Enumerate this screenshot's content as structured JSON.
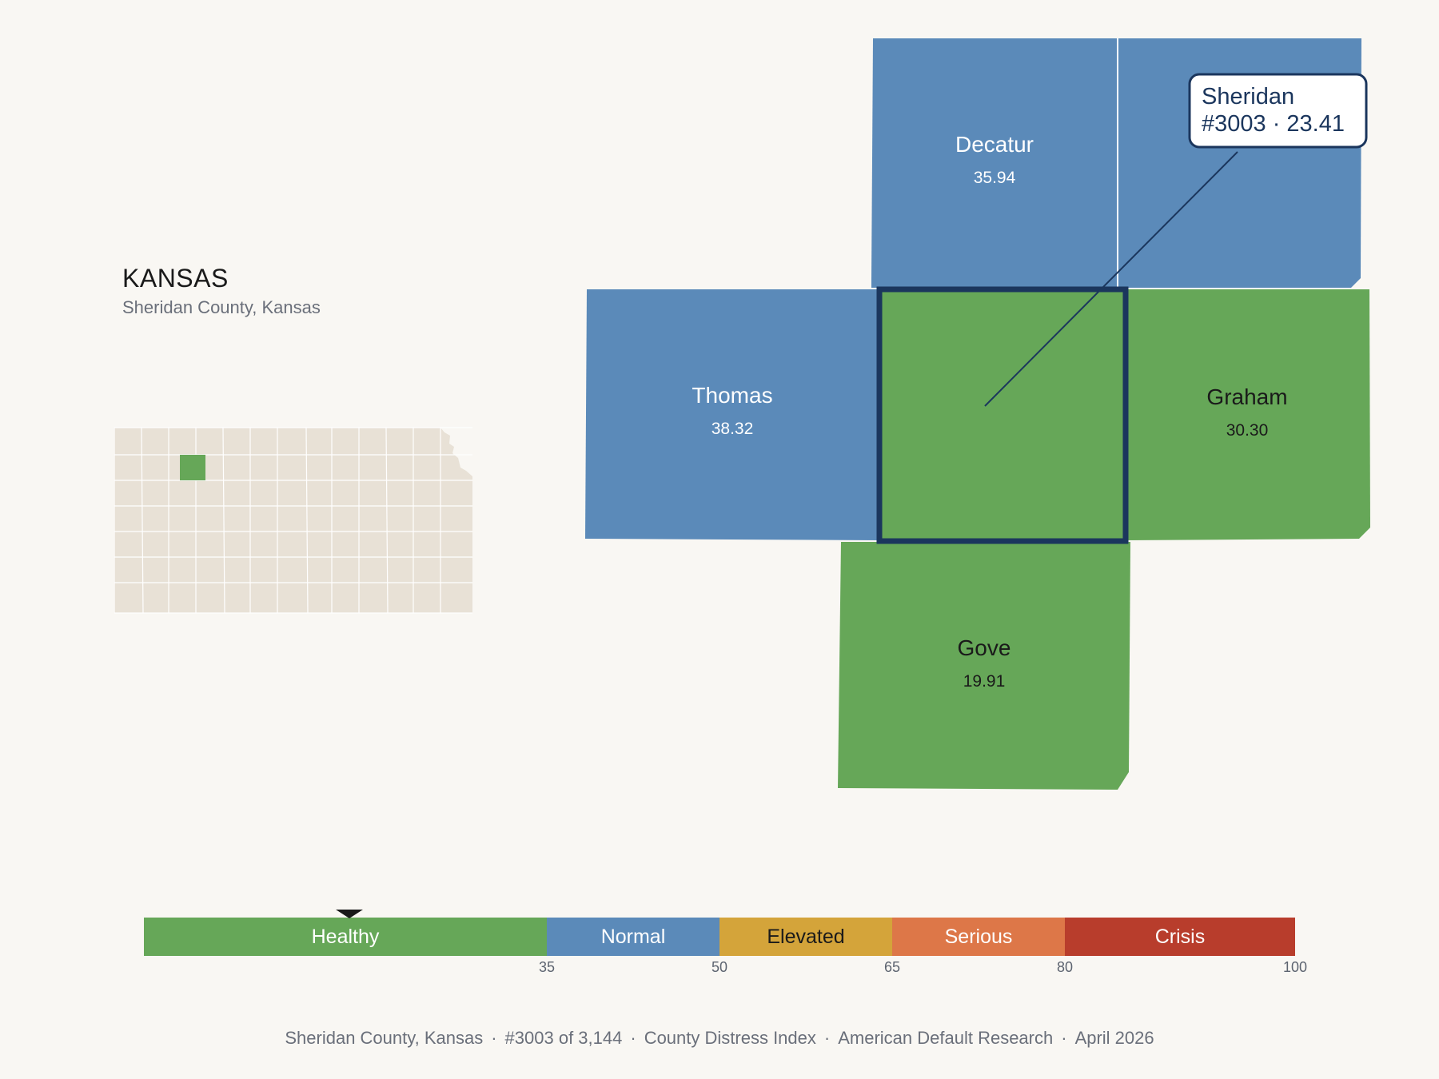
{
  "header": {
    "state": "KANSAS",
    "subtitle": "Sheridan County, Kansas"
  },
  "colors": {
    "healthy": "#66a758",
    "normal": "#5b8ab9",
    "elevated": "#d4a43a",
    "serious": "#dd7748",
    "crisis": "#b83d2c",
    "highlight": "#1b365d",
    "inset_fill": "#e8e1d6",
    "background": "#f9f7f3"
  },
  "map": {
    "counties": [
      {
        "name": "Decatur",
        "value": "35.94",
        "band": "normal"
      },
      {
        "name": "Thomas",
        "value": "38.32",
        "band": "normal"
      },
      {
        "name": "Graham",
        "value": "30.30",
        "band": "healthy"
      },
      {
        "name": "Gove",
        "value": "19.91",
        "band": "healthy"
      }
    ],
    "focus": {
      "name": "Sheridan",
      "rank_value": "#3003 · 23.41",
      "band": "healthy"
    }
  },
  "legend": {
    "segments": [
      {
        "label": "Healthy",
        "from": 0,
        "to": 35,
        "color": "#66a758",
        "text": "#ffffff"
      },
      {
        "label": "Normal",
        "from": 35,
        "to": 50,
        "color": "#5b8ab9",
        "text": "#ffffff"
      },
      {
        "label": "Elevated",
        "from": 50,
        "to": 65,
        "color": "#d4a43a",
        "text": "#1a1a1a"
      },
      {
        "label": "Serious",
        "from": 65,
        "to": 80,
        "color": "#dd7748",
        "text": "#ffffff"
      },
      {
        "label": "Crisis",
        "from": 80,
        "to": 100,
        "color": "#b83d2c",
        "text": "#ffffff"
      }
    ],
    "ticks": [
      "35",
      "50",
      "65",
      "80",
      "100"
    ],
    "marker_value": 23.41
  },
  "footer": {
    "county": "Sheridan County, Kansas",
    "rank": "#3003 of 3,144",
    "index": "County Distress Index",
    "source": "American Default Research",
    "date": "April 2026"
  }
}
